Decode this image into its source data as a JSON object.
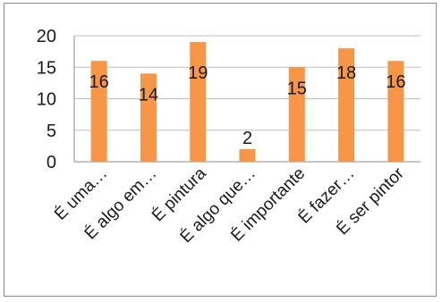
{
  "chart_data": {
    "type": "bar",
    "title": "",
    "xlabel": "",
    "ylabel": "",
    "categories": [
      "É uma…",
      "É algo em…",
      "É pintura",
      "É algo que…",
      "É importante",
      "É fazer…",
      "É ser pintor"
    ],
    "values": [
      16,
      14,
      19,
      2,
      15,
      18,
      16
    ],
    "data_labels": [
      "16",
      "14",
      "19",
      "2",
      "15",
      "18",
      "16"
    ],
    "yticks": [
      "0",
      "5",
      "10",
      "15",
      "20"
    ],
    "ylim": [
      0,
      20
    ],
    "grid": true,
    "legend": "none",
    "bar_color": "#F79646",
    "grid_color": "#bfbfbf",
    "axis_color": "#8c8c8c"
  }
}
